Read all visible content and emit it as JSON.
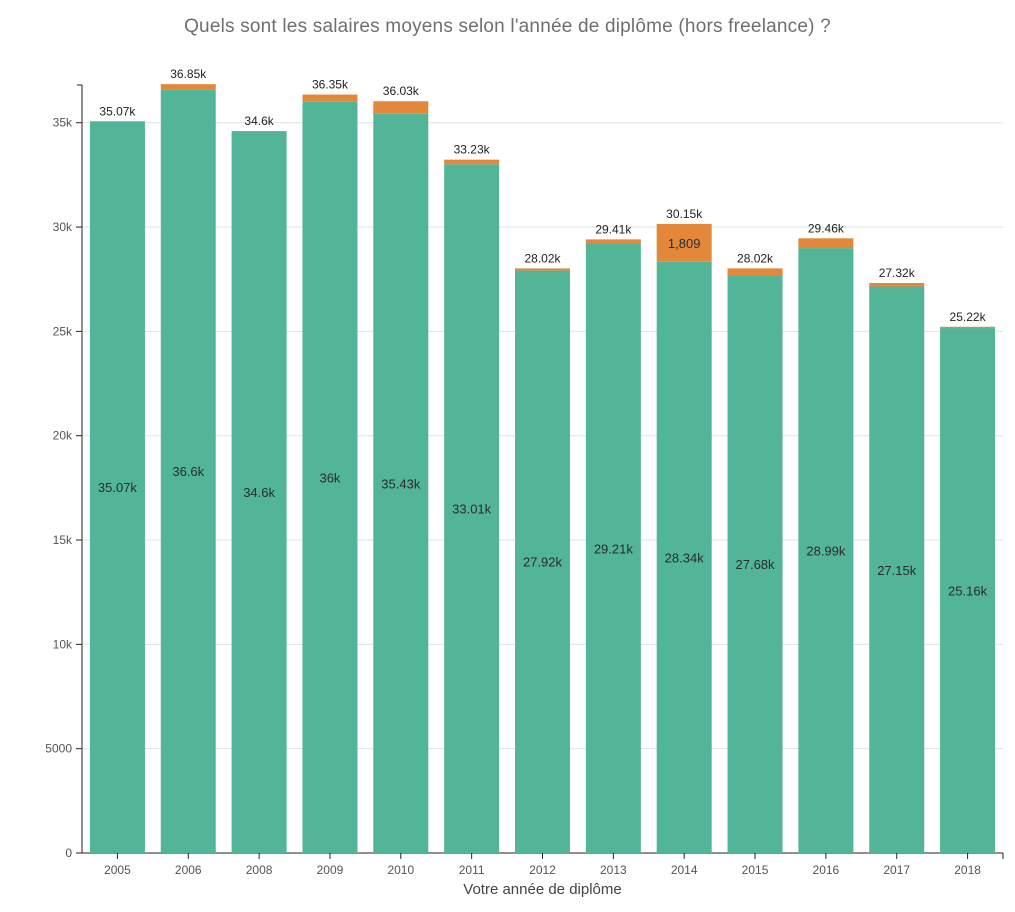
{
  "chart_data": {
    "type": "bar",
    "stacked": true,
    "title": "Quels sont les salaires moyens selon l'année de diplôme (hors freelance) ?",
    "xlabel": "Votre année de diplôme",
    "ylabel": "",
    "ylim": [
      0,
      37000
    ],
    "y_ticks": [
      0,
      5000,
      10000,
      15000,
      20000,
      25000,
      30000,
      35000
    ],
    "y_tick_labels": [
      "0",
      "5000",
      "10k",
      "15k",
      "20k",
      "25k",
      "30k",
      "35k"
    ],
    "grid": true,
    "categories": [
      "2005",
      "2006",
      "2008",
      "2009",
      "2010",
      "2011",
      "2012",
      "2013",
      "2014",
      "2015",
      "2016",
      "2017",
      "2018"
    ],
    "series": [
      {
        "color": "#52b597",
        "values": [
          35070,
          36600,
          34600,
          36000,
          35430,
          33010,
          27920,
          29210,
          28340,
          27680,
          28990,
          27150,
          25160
        ],
        "labels": [
          "35.07k",
          "36.6k",
          "34.6k",
          "36k",
          "35.43k",
          "33.01k",
          "27.92k",
          "29.21k",
          "28.34k",
          "27.68k",
          "28.99k",
          "27.15k",
          "25.16k"
        ]
      },
      {
        "color": "#e3883b",
        "values": [
          0,
          250,
          0,
          350,
          600,
          220,
          100,
          200,
          1809,
          340,
          470,
          170,
          60
        ],
        "labels": [
          "",
          "",
          "",
          "",
          "",
          "",
          "",
          "",
          "1,809",
          "",
          "",
          "",
          ""
        ]
      }
    ],
    "totals": [
      "35.07k",
      "36.85k",
      "34.6k",
      "36.35k",
      "36.03k",
      "33.23k",
      "28.02k",
      "29.41k",
      "30.15k",
      "28.02k",
      "29.46k",
      "27.32k",
      "25.22k"
    ]
  }
}
